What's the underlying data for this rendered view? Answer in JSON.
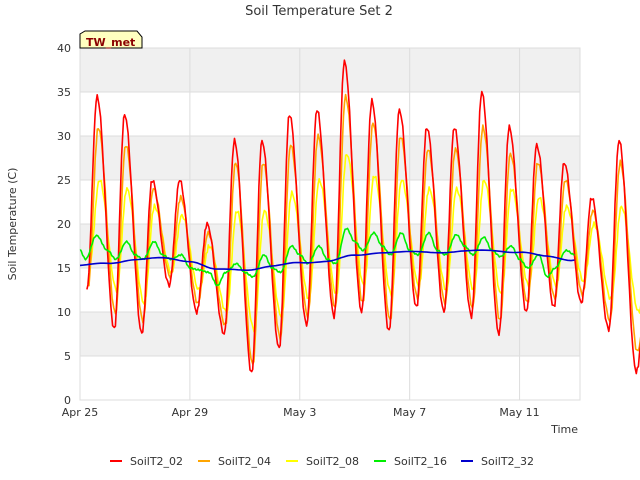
{
  "chart_data": {
    "type": "line",
    "title": "Soil Temperature Set 2",
    "xlabel": "Time",
    "ylabel": "Soil Temperature (C)",
    "badge": "TW_met",
    "x_start": "2023-04-25",
    "x_end": "2023-05-12",
    "xlim_days": [
      0,
      18.2
    ],
    "ylim": [
      0,
      40
    ],
    "y_ticks": [
      0,
      5,
      10,
      15,
      20,
      25,
      30,
      35,
      40
    ],
    "x_ticks": [
      {
        "label": "Apr 25",
        "day": 0
      },
      {
        "label": "Apr 29",
        "day": 4
      },
      {
        "label": "May 3",
        "day": 8
      },
      {
        "label": "May 7",
        "day": 12
      },
      {
        "label": "May 11",
        "day": 16
      }
    ],
    "grid": true,
    "legend_position": "bottom",
    "daily_extremes": {
      "SoilT2_02": {
        "min": [
          12.5,
          8,
          7.5,
          13,
          10,
          7.5,
          3,
          5.8,
          8.5,
          9.5,
          10,
          7.8,
          10.5,
          10,
          9.5,
          7.5,
          10,
          10.5,
          11,
          8,
          3.2,
          11
        ],
        "max": [
          34.5,
          32.5,
          25,
          25,
          20,
          29.5,
          29.5,
          32.5,
          33,
          38.5,
          34,
          33,
          31,
          31,
          35,
          31,
          29,
          27,
          23,
          29.5,
          12
        ],
        "min_hour": 6,
        "max_hour": 15
      },
      "SoilT2_04": {
        "min": [
          12.8,
          9.8,
          9,
          14,
          11,
          8.5,
          4,
          7,
          9.5,
          10.5,
          11,
          9,
          11.5,
          11,
          10.5,
          9,
          11,
          11.5,
          12,
          9,
          5.5,
          12
        ],
        "max": [
          31,
          29,
          24,
          23,
          19,
          27,
          27,
          29,
          30,
          34.5,
          31.5,
          30,
          28.5,
          28.5,
          31,
          28,
          27,
          25,
          21.5,
          27,
          12.5
        ],
        "min_hour": 7,
        "max_hour": 16
      },
      "SoilT2_08": {
        "min": [
          15,
          12.5,
          11,
          14.5,
          12.5,
          10,
          8,
          9.5,
          11.5,
          12,
          13,
          12,
          13,
          12.5,
          12.5,
          12,
          13,
          13,
          13.5,
          11.5,
          10,
          13
        ],
        "max": [
          25,
          24,
          22,
          21,
          17.5,
          21.5,
          21.5,
          23.5,
          25,
          28,
          25.5,
          25,
          24,
          24,
          25,
          24,
          23,
          22,
          20,
          22,
          15
        ],
        "min_hour": 8,
        "max_hour": 17
      }
    },
    "series": [
      {
        "name": "SoilT2_02",
        "color": "#ff0000"
      },
      {
        "name": "SoilT2_04",
        "color": "#ffa500"
      },
      {
        "name": "SoilT2_08",
        "color": "#ffff00"
      },
      {
        "name": "SoilT2_16",
        "color": "#00ee00",
        "days": [
          0,
          0.2,
          0.6,
          1,
          1.3,
          1.7,
          2,
          2.3,
          2.7,
          3,
          3.3,
          3.7,
          4,
          4.3,
          4.7,
          5,
          5.3,
          5.7,
          6,
          6.3,
          6.7,
          7,
          7.3,
          7.7,
          8,
          8.3,
          8.7,
          9,
          9.3,
          9.7,
          10,
          10.3,
          10.7,
          11,
          11.3,
          11.7,
          12,
          12.3,
          12.7,
          13,
          13.3,
          13.7,
          14,
          14.3,
          14.7,
          15,
          15.3,
          15.7,
          16,
          16.3,
          16.7,
          17,
          17.3,
          17.7,
          18
        ],
        "values": [
          17,
          16,
          18.7,
          17,
          16,
          18,
          16.5,
          16,
          18,
          16.5,
          16,
          16.5,
          15,
          14.8,
          14.5,
          13,
          14.5,
          15.5,
          14.5,
          14,
          16.5,
          15,
          14.5,
          17.5,
          16.5,
          15.5,
          17.5,
          16,
          15.5,
          19.5,
          18,
          17,
          19,
          17.5,
          16.5,
          19,
          17,
          16.5,
          19,
          17,
          16.5,
          18.8,
          17.5,
          16.5,
          18.5,
          17,
          16.3,
          17.5,
          16,
          15,
          16.5,
          14,
          15,
          17,
          16.5
        ]
      },
      {
        "name": "SoilT2_32",
        "color": "#0000cc",
        "days": [
          0,
          1,
          2,
          3,
          4,
          5,
          6,
          7,
          8,
          9,
          10,
          11,
          12,
          13,
          14,
          15,
          16,
          17,
          18
        ],
        "values": [
          15.3,
          15.5,
          16.0,
          16.1,
          15.8,
          14.8,
          14.8,
          15.2,
          15.6,
          15.8,
          16.4,
          16.8,
          16.8,
          16.8,
          16.9,
          17.0,
          16.8,
          16.3,
          15.9
        ]
      }
    ]
  }
}
